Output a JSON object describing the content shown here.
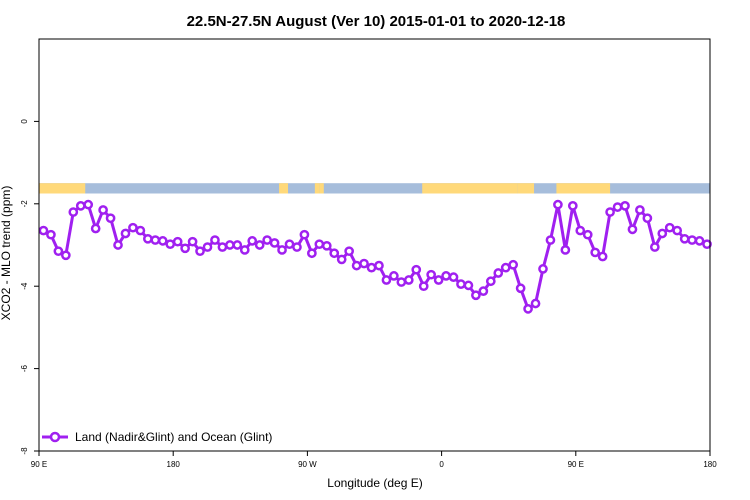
{
  "chart_data": {
    "type": "line",
    "title": "22.5N-27.5N August (Ver 10)   2015-01-01 to 2020-12-18",
    "xlabel": "Longitude (deg E)",
    "ylabel": "XCO2 - MLO trend (ppm)",
    "x_ticks": [
      {
        "value": 90,
        "label": "90 E"
      },
      {
        "value": 180,
        "label": "180"
      },
      {
        "value": 270,
        "label": "90 W"
      },
      {
        "value": 360,
        "label": "0"
      },
      {
        "value": 450,
        "label": "90 E"
      },
      {
        "value": 540,
        "label": "180"
      }
    ],
    "y_ticks": [
      {
        "value": 0,
        "label": "0"
      },
      {
        "value": -2,
        "label": "-2"
      },
      {
        "value": -4,
        "label": "-4"
      },
      {
        "value": -6,
        "label": "-6"
      },
      {
        "value": -8,
        "label": "-8"
      }
    ],
    "xlim": [
      90,
      540
    ],
    "ylim": [
      -8,
      2
    ],
    "grid": false,
    "legend_position": "bottom-left",
    "land_band": {
      "y_range": [
        -1.75,
        -1.5
      ],
      "ocean_color": "#A6BDDB",
      "land_color": "#FFD97A",
      "land_segments": [
        [
          90,
          121
        ],
        [
          251,
          257
        ],
        [
          275,
          278
        ],
        [
          278,
          281
        ],
        [
          347,
          411
        ],
        [
          411,
          422
        ],
        [
          437,
          473
        ]
      ]
    },
    "series": [
      {
        "name": "Land (Nadir&Glint) and Ocean (Glint)",
        "color": "#A020F0",
        "x": [
          93,
          98,
          103,
          108,
          113,
          118,
          123,
          128,
          133,
          138,
          143,
          148,
          153,
          158,
          163,
          168,
          173,
          178,
          183,
          188,
          193,
          198,
          203,
          208,
          213,
          218,
          223,
          228,
          233,
          238,
          243,
          248,
          253,
          258,
          263,
          268,
          273,
          278,
          283,
          288,
          293,
          298,
          303,
          308,
          313,
          318,
          323,
          328,
          333,
          338,
          343,
          348,
          353,
          358,
          363,
          368,
          373,
          378,
          383,
          388,
          393,
          398,
          403,
          408,
          413,
          418,
          423,
          428,
          433,
          438,
          443,
          448,
          453,
          458,
          463,
          468,
          473,
          478,
          483,
          488,
          493,
          498,
          503,
          508,
          513,
          518,
          523,
          528,
          533,
          538
        ],
        "values": [
          -2.65,
          -2.75,
          -3.15,
          -3.25,
          -2.2,
          -2.05,
          -2.02,
          -2.6,
          -2.15,
          -2.35,
          -3.0,
          -2.72,
          -2.58,
          -2.65,
          -2.85,
          -2.88,
          -2.9,
          -2.98,
          -2.92,
          -3.08,
          -2.92,
          -3.15,
          -3.05,
          -2.88,
          -3.05,
          -3.0,
          -3.0,
          -3.12,
          -2.9,
          -3.0,
          -2.88,
          -2.95,
          -3.12,
          -2.98,
          -3.05,
          -2.75,
          -3.2,
          -2.98,
          -3.02,
          -3.2,
          -3.35,
          -3.15,
          -3.5,
          -3.45,
          -3.55,
          -3.5,
          -3.85,
          -3.75,
          -3.9,
          -3.85,
          -3.6,
          -4.0,
          -3.72,
          -3.85,
          -3.75,
          -3.78,
          -3.95,
          -3.98,
          -4.22,
          -4.12,
          -3.88,
          -3.68,
          -3.55,
          -3.48,
          -4.05,
          -4.55,
          -4.42,
          -3.58,
          -2.88,
          -2.02,
          -3.12,
          -2.05,
          -2.65,
          -2.75,
          -3.18,
          -3.28,
          -2.2,
          -2.08,
          -2.05,
          -2.62,
          -2.15,
          -2.35,
          -3.05,
          -2.72,
          -2.58,
          -2.65,
          -2.85,
          -2.88,
          -2.9,
          -2.98
        ]
      }
    ]
  }
}
